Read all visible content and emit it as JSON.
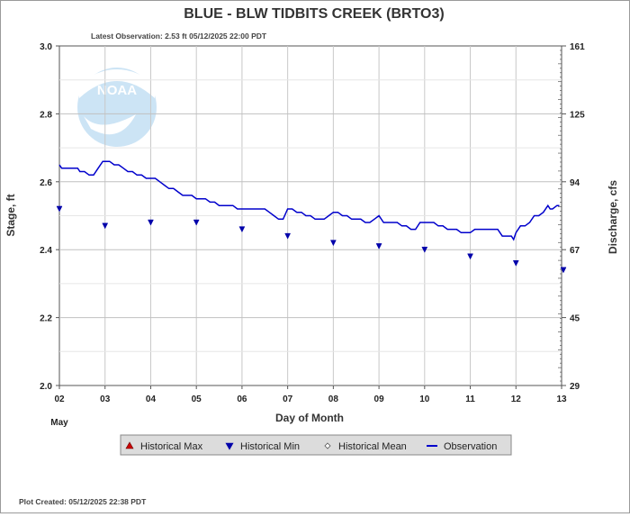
{
  "chart_data": {
    "type": "line",
    "title": "BLUE - BLW TIDBITS CREEK  (BRTO3)",
    "subtitle": "Latest Observation: 2.53 ft 05/12/2025 22:00 PDT",
    "xlabel": "Day of Month",
    "month_label": "May",
    "ylabel_left": "Stage, ft",
    "ylabel_right": "Discharge, cfs",
    "xlim": [
      2,
      13
    ],
    "ylim": [
      2.0,
      3.0
    ],
    "x_ticks": [
      "02",
      "03",
      "04",
      "05",
      "06",
      "07",
      "08",
      "09",
      "10",
      "11",
      "12",
      "13"
    ],
    "y_ticks_left": [
      "3.0",
      "2.8",
      "2.6",
      "2.4",
      "2.2",
      "2.0"
    ],
    "y_ticks_right": [
      "161",
      "125",
      "94",
      "67",
      "45",
      "29"
    ],
    "grid": true,
    "logo": "NOAA",
    "legend": {
      "placement": "bottom",
      "items": [
        {
          "name": "Historical Max",
          "symbol": "triangle-up",
          "color": "#cc0000"
        },
        {
          "name": "Historical Min",
          "symbol": "triangle-down",
          "color": "#0000aa"
        },
        {
          "name": "Historical Mean",
          "symbol": "diamond",
          "color": "#ffffff"
        },
        {
          "name": "Observation",
          "symbol": "line",
          "color": "#0000cc"
        }
      ]
    },
    "series": [
      {
        "name": "Observation",
        "color": "#0000cc",
        "x": [
          2.0,
          2.05,
          2.4,
          2.45,
          2.55,
          2.65,
          2.75,
          2.85,
          2.95,
          3.0,
          3.1,
          3.2,
          3.3,
          3.4,
          3.5,
          3.6,
          3.7,
          3.8,
          3.9,
          4.0,
          4.1,
          4.2,
          4.3,
          4.4,
          4.5,
          4.6,
          4.7,
          4.8,
          4.9,
          5.0,
          5.1,
          5.2,
          5.3,
          5.4,
          5.5,
          5.6,
          5.7,
          5.8,
          5.9,
          6.0,
          6.1,
          6.2,
          6.4,
          6.5,
          6.6,
          6.7,
          6.8,
          6.9,
          7.0,
          7.1,
          7.2,
          7.3,
          7.4,
          7.5,
          7.6,
          7.7,
          7.8,
          7.9,
          8.0,
          8.1,
          8.2,
          8.3,
          8.4,
          8.5,
          8.6,
          8.7,
          8.8,
          8.9,
          9.0,
          9.1,
          9.2,
          9.3,
          9.4,
          9.5,
          9.6,
          9.7,
          9.8,
          9.9,
          10.0,
          10.1,
          10.2,
          10.3,
          10.4,
          10.5,
          10.6,
          10.7,
          10.8,
          10.9,
          11.0,
          11.1,
          11.2,
          11.3,
          11.4,
          11.5,
          11.6,
          11.7,
          11.8,
          11.9,
          11.95,
          12.0,
          12.1,
          12.2,
          12.3,
          12.4,
          12.5,
          12.6,
          12.7,
          12.75,
          12.8,
          12.9,
          12.95
        ],
        "y": [
          2.65,
          2.64,
          2.64,
          2.63,
          2.63,
          2.62,
          2.62,
          2.64,
          2.66,
          2.66,
          2.66,
          2.65,
          2.65,
          2.64,
          2.63,
          2.63,
          2.62,
          2.62,
          2.61,
          2.61,
          2.61,
          2.6,
          2.59,
          2.58,
          2.58,
          2.57,
          2.56,
          2.56,
          2.56,
          2.55,
          2.55,
          2.55,
          2.54,
          2.54,
          2.53,
          2.53,
          2.53,
          2.53,
          2.52,
          2.52,
          2.52,
          2.52,
          2.52,
          2.52,
          2.51,
          2.5,
          2.49,
          2.49,
          2.52,
          2.52,
          2.51,
          2.51,
          2.5,
          2.5,
          2.49,
          2.49,
          2.49,
          2.5,
          2.51,
          2.51,
          2.5,
          2.5,
          2.49,
          2.49,
          2.49,
          2.48,
          2.48,
          2.49,
          2.5,
          2.48,
          2.48,
          2.48,
          2.48,
          2.47,
          2.47,
          2.46,
          2.46,
          2.48,
          2.48,
          2.48,
          2.48,
          2.47,
          2.47,
          2.46,
          2.46,
          2.46,
          2.45,
          2.45,
          2.45,
          2.46,
          2.46,
          2.46,
          2.46,
          2.46,
          2.46,
          2.44,
          2.44,
          2.44,
          2.43,
          2.45,
          2.47,
          2.47,
          2.48,
          2.5,
          2.5,
          2.51,
          2.53,
          2.52,
          2.52,
          2.53,
          2.53
        ]
      },
      {
        "name": "Historical Min",
        "color": "#0000aa",
        "x": [
          2,
          3,
          4,
          5,
          6,
          7,
          8,
          9,
          10,
          11,
          12,
          13
        ],
        "y": [
          2.52,
          2.47,
          2.48,
          2.48,
          2.46,
          2.44,
          2.42,
          2.41,
          2.4,
          2.38,
          2.36,
          2.34
        ]
      }
    ]
  },
  "footer": {
    "plot_created": "Plot Created: 05/12/2025 22:38 PDT"
  }
}
